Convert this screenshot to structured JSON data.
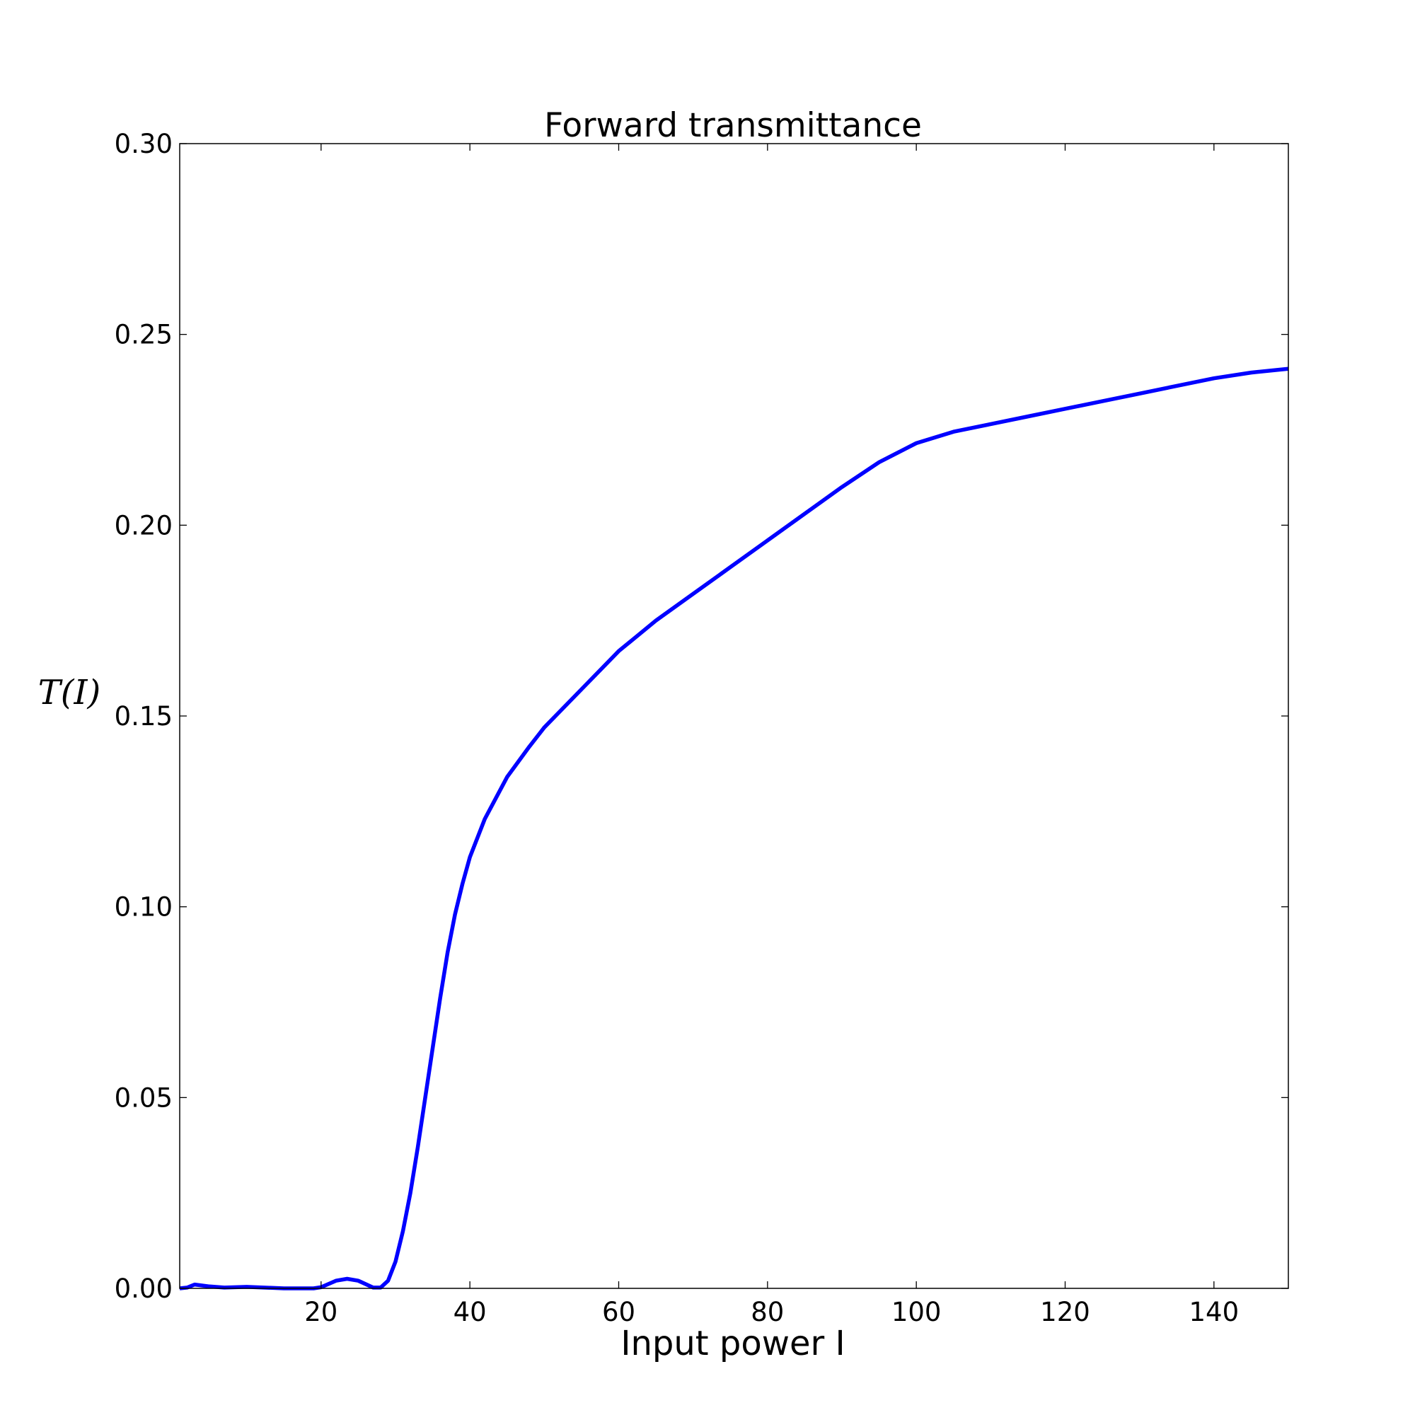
{
  "chart_data": {
    "type": "line",
    "title": "Forward transmittance",
    "x_label": "Input power I",
    "y_label": "T(I)",
    "xlim": [
      1,
      150
    ],
    "ylim": [
      0,
      0.3
    ],
    "xticks": [
      20,
      40,
      60,
      80,
      100,
      120,
      140
    ],
    "yticks": [
      {
        "value": 0,
        "label": "0.00"
      },
      {
        "value": 0.05,
        "label": "0.05"
      },
      {
        "value": 0.1,
        "label": "0.10"
      },
      {
        "value": 0.15,
        "label": "0.15"
      },
      {
        "value": 0.2,
        "label": "0.20"
      },
      {
        "value": 0.25,
        "label": "0.25"
      },
      {
        "value": 0.3,
        "label": "0.30"
      }
    ],
    "grid": false,
    "x": [
      1,
      2,
      3,
      5,
      7,
      10,
      15,
      19,
      20,
      22,
      23.5,
      25,
      27,
      28,
      29,
      30,
      31,
      32,
      33,
      34,
      35,
      36,
      37,
      38,
      39,
      40,
      42,
      45,
      48,
      50,
      55,
      60,
      65,
      70,
      75,
      80,
      85,
      90,
      95,
      100,
      105,
      110,
      115,
      120,
      125,
      130,
      135,
      140,
      145,
      150
    ],
    "series": [
      {
        "name": "T(I)",
        "color": "#0000ff",
        "values": [
          0,
          0.0002,
          0.001,
          0.0005,
          0.0002,
          0.0004,
          0,
          0,
          0.0003,
          0.002,
          0.0025,
          0.002,
          0.0002,
          0.0002,
          0.002,
          0.007,
          0.015,
          0.025,
          0.037,
          0.05,
          0.063,
          0.076,
          0.088,
          0.098,
          0.106,
          0.113,
          0.123,
          0.134,
          0.142,
          0.147,
          0.157,
          0.167,
          0.175,
          0.182,
          0.189,
          0.196,
          0.203,
          0.21,
          0.2165,
          0.2215,
          0.2245,
          0.2265,
          0.2285,
          0.2305,
          0.2325,
          0.2345,
          0.2365,
          0.2385,
          0.24,
          0.241
        ]
      }
    ]
  }
}
